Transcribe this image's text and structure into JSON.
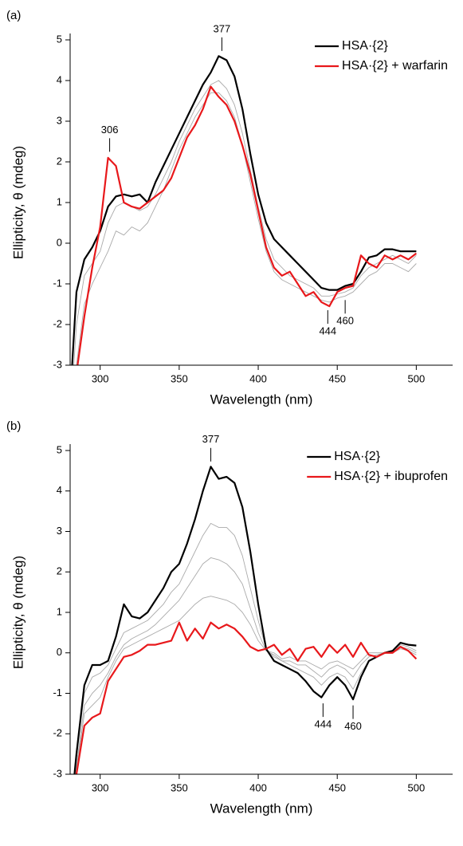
{
  "chart_data": [
    {
      "type": "line",
      "panel_label": "(a)",
      "xlabel": "Wavelength (nm)",
      "ylabel": "Ellipticity, θ (mdeg)",
      "xlim": [
        281,
        523
      ],
      "ylim": [
        -3,
        5
      ],
      "xticks": [
        300,
        350,
        400,
        450,
        500
      ],
      "yticks": [
        -3,
        -2,
        -1,
        0,
        1,
        2,
        3,
        4,
        5
      ],
      "legend": "upper right",
      "x": [
        280,
        285,
        290,
        295,
        300,
        305,
        310,
        315,
        320,
        325,
        330,
        335,
        340,
        345,
        350,
        355,
        360,
        365,
        370,
        375,
        380,
        385,
        390,
        395,
        400,
        405,
        410,
        415,
        420,
        425,
        430,
        435,
        440,
        445,
        450,
        455,
        460,
        465,
        470,
        475,
        480,
        485,
        490,
        495,
        500
      ],
      "series": [
        {
          "color": "#aaaaaa",
          "values": [
            -5,
            -2,
            -0.8,
            -0.5,
            -0.2,
            0.5,
            0.9,
            1.0,
            0.9,
            0.8,
            0.9,
            1.2,
            1.6,
            2.0,
            2.5,
            2.9,
            3.3,
            3.6,
            3.9,
            4.0,
            3.8,
            3.4,
            2.7,
            1.8,
            0.9,
            0.1,
            -0.4,
            -0.6,
            -0.8,
            -0.9,
            -1.0,
            -1.1,
            -1.3,
            -1.3,
            -1.25,
            -1.2,
            -1.1,
            -0.8,
            -0.6,
            -0.5,
            -0.4,
            -0.3,
            -0.4,
            -0.5,
            -0.3
          ]
        },
        {
          "color": "#aaaaaa",
          "values": [
            -5,
            -3,
            -1.5,
            -1.0,
            -0.6,
            -0.2,
            0.3,
            0.2,
            0.4,
            0.3,
            0.5,
            0.9,
            1.3,
            1.8,
            2.3,
            2.7,
            3.1,
            3.4,
            3.7,
            3.7,
            3.5,
            3.1,
            2.4,
            1.5,
            0.6,
            -0.2,
            -0.7,
            -0.9,
            -1.0,
            -1.1,
            -1.2,
            -1.3,
            -1.4,
            -1.45,
            -1.35,
            -1.3,
            -1.2,
            -1.0,
            -0.8,
            -0.7,
            -0.5,
            -0.5,
            -0.6,
            -0.7,
            -0.5
          ]
        },
        {
          "name": "HSA·{2}",
          "color": "#000000",
          "values": [
            -4.5,
            -1.2,
            -0.4,
            -0.1,
            0.3,
            0.9,
            1.15,
            1.2,
            1.15,
            1.2,
            1.0,
            1.5,
            1.9,
            2.3,
            2.7,
            3.1,
            3.5,
            3.9,
            4.2,
            4.6,
            4.5,
            4.1,
            3.3,
            2.2,
            1.2,
            0.5,
            0.1,
            -0.1,
            -0.3,
            -0.5,
            -0.7,
            -0.9,
            -1.1,
            -1.15,
            -1.15,
            -1.05,
            -1.0,
            -0.7,
            -0.35,
            -0.3,
            -0.15,
            -0.15,
            -0.2,
            -0.2,
            -0.2
          ]
        },
        {
          "name": "HSA·{2} + warfarin",
          "color": "#e8181b",
          "values": [
            -5,
            -3.2,
            -1.8,
            -0.6,
            0.4,
            2.1,
            1.9,
            1.0,
            0.9,
            0.85,
            1.0,
            1.15,
            1.3,
            1.6,
            2.1,
            2.6,
            2.9,
            3.3,
            3.85,
            3.6,
            3.4,
            3.0,
            2.4,
            1.7,
            0.8,
            -0.1,
            -0.6,
            -0.8,
            -0.7,
            -1.0,
            -1.3,
            -1.2,
            -1.45,
            -1.55,
            -1.2,
            -1.1,
            -1.05,
            -0.3,
            -0.5,
            -0.6,
            -0.3,
            -0.4,
            -0.3,
            -0.4,
            -0.25
          ]
        }
      ],
      "annotations": [
        {
          "text": "377",
          "x": 377,
          "y": 4.63,
          "position": "above"
        },
        {
          "text": "306",
          "x": 306,
          "y": 2.15,
          "position": "above"
        },
        {
          "text": "444",
          "x": 444,
          "y": -1.55,
          "position": "below"
        },
        {
          "text": "460",
          "x": 455,
          "y": -1.3,
          "position": "below"
        }
      ]
    },
    {
      "type": "line",
      "panel_label": "(b)",
      "xlabel": "Wavelength (nm)",
      "ylabel": "Ellipticity, θ (mdeg)",
      "xlim": [
        281,
        523
      ],
      "ylim": [
        -3,
        5
      ],
      "xticks": [
        300,
        350,
        400,
        450,
        500
      ],
      "yticks": [
        -3,
        -2,
        -1,
        0,
        1,
        2,
        3,
        4,
        5
      ],
      "legend": "upper right",
      "x": [
        280,
        285,
        290,
        295,
        300,
        305,
        310,
        315,
        320,
        325,
        330,
        335,
        340,
        345,
        350,
        355,
        360,
        365,
        370,
        375,
        380,
        385,
        390,
        395,
        400,
        405,
        410,
        415,
        420,
        425,
        430,
        435,
        440,
        445,
        450,
        455,
        460,
        465,
        470,
        475,
        480,
        485,
        490,
        495,
        500
      ],
      "series": [
        {
          "color": "#aaaaaa",
          "values": [
            -5,
            -2.6,
            -1.0,
            -0.6,
            -0.5,
            -0.3,
            0.1,
            0.5,
            0.6,
            0.7,
            0.8,
            1.0,
            1.2,
            1.5,
            1.7,
            2.1,
            2.5,
            2.9,
            3.2,
            3.1,
            3.1,
            2.9,
            2.4,
            1.6,
            0.8,
            0.1,
            -0.1,
            -0.2,
            -0.3,
            -0.4,
            -0.5,
            -0.6,
            -0.8,
            -0.6,
            -0.5,
            -0.6,
            -0.9,
            -0.5,
            -0.2,
            -0.1,
            0.0,
            0.0,
            0.2,
            0.15,
            0.05
          ]
        },
        {
          "color": "#aaaaaa",
          "values": [
            -5,
            -2.8,
            -1.3,
            -1.0,
            -0.8,
            -0.5,
            -0.1,
            0.2,
            0.35,
            0.45,
            0.55,
            0.7,
            0.9,
            1.1,
            1.3,
            1.6,
            1.9,
            2.2,
            2.35,
            2.3,
            2.2,
            2.0,
            1.7,
            1.1,
            0.5,
            0.05,
            -0.05,
            -0.2,
            -0.2,
            -0.3,
            -0.3,
            -0.45,
            -0.6,
            -0.4,
            -0.3,
            -0.4,
            -0.6,
            -0.3,
            -0.1,
            -0.05,
            0.0,
            0.0,
            0.15,
            0.1,
            0.0
          ]
        },
        {
          "color": "#aaaaaa",
          "values": [
            -5,
            -2.9,
            -1.5,
            -1.3,
            -1.1,
            -0.6,
            -0.2,
            0.1,
            0.2,
            0.3,
            0.4,
            0.5,
            0.6,
            0.7,
            0.8,
            1.0,
            1.2,
            1.35,
            1.4,
            1.35,
            1.3,
            1.2,
            1.0,
            0.7,
            0.3,
            0.05,
            0.0,
            -0.15,
            -0.1,
            -0.2,
            -0.2,
            -0.3,
            -0.4,
            -0.25,
            -0.2,
            -0.3,
            -0.4,
            -0.2,
            0.0,
            0.0,
            0.0,
            0.0,
            0.1,
            0.05,
            -0.05
          ]
        },
        {
          "name": "HSA·{2}",
          "color": "#000000",
          "values": [
            -4.5,
            -2.5,
            -0.8,
            -0.3,
            -0.3,
            -0.2,
            0.4,
            1.2,
            0.9,
            0.85,
            1.0,
            1.3,
            1.6,
            2.0,
            2.2,
            2.7,
            3.3,
            4.0,
            4.6,
            4.3,
            4.35,
            4.2,
            3.6,
            2.5,
            1.2,
            0.1,
            -0.2,
            -0.3,
            -0.4,
            -0.5,
            -0.7,
            -0.95,
            -1.1,
            -0.8,
            -0.6,
            -0.8,
            -1.15,
            -0.6,
            -0.2,
            -0.1,
            0.0,
            0.05,
            0.25,
            0.2,
            0.18
          ]
        },
        {
          "name": "HSA·{2} + ibuprofen",
          "color": "#e8181b",
          "values": [
            -5,
            -3,
            -1.8,
            -1.6,
            -1.5,
            -0.7,
            -0.4,
            -0.1,
            -0.05,
            0.05,
            0.2,
            0.2,
            0.25,
            0.3,
            0.75,
            0.3,
            0.6,
            0.35,
            0.75,
            0.6,
            0.7,
            0.6,
            0.4,
            0.15,
            0.05,
            0.1,
            0.2,
            -0.05,
            0.1,
            -0.2,
            0.1,
            0.15,
            -0.1,
            0.2,
            0.0,
            0.2,
            -0.1,
            0.25,
            -0.05,
            -0.1,
            0.0,
            0.0,
            0.15,
            0.05,
            -0.15
          ]
        }
      ],
      "annotations": [
        {
          "text": "377",
          "x": 370,
          "y": 4.63,
          "position": "above"
        },
        {
          "text": "444",
          "x": 441,
          "y": -1.15,
          "position": "below"
        },
        {
          "text": "460",
          "x": 460,
          "y": -1.2,
          "position": "below"
        }
      ]
    }
  ]
}
